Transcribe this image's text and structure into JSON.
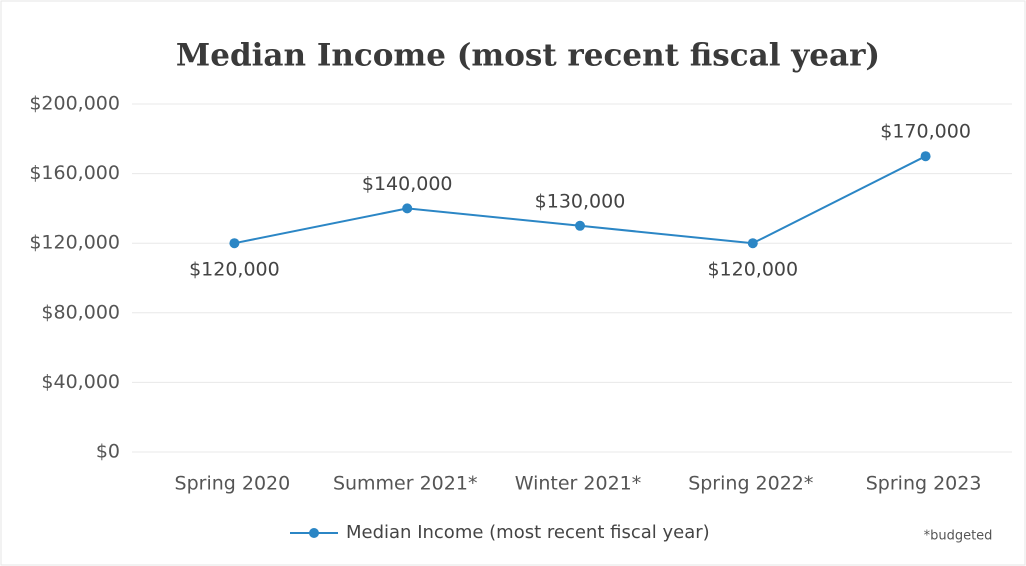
{
  "chart_data": {
    "type": "line",
    "title": "Median Income (most recent fiscal year)",
    "categories": [
      "Spring 2020",
      "Summer 2021*",
      "Winter 2021*",
      "Spring 2022*",
      "Spring 2023"
    ],
    "series": [
      {
        "name": "Median Income (most recent fiscal year)",
        "color": "#2b86c5",
        "values": [
          120000,
          140000,
          130000,
          120000,
          170000
        ],
        "value_labels": [
          "$120,000",
          "$140,000",
          "$130,000",
          "$120,000",
          "$170,000"
        ]
      }
    ],
    "ylim": [
      0,
      200000
    ],
    "yticks": [
      {
        "value": 0,
        "label": "$0"
      },
      {
        "value": 40000,
        "label": "$40,000"
      },
      {
        "value": 80000,
        "label": "$80,000"
      },
      {
        "value": 120000,
        "label": "$120,000"
      },
      {
        "value": 160000,
        "label": "$160,000"
      },
      {
        "value": 200000,
        "label": "$200,000"
      }
    ],
    "grid": true,
    "legend": "bottom",
    "note": "*budgeted"
  }
}
